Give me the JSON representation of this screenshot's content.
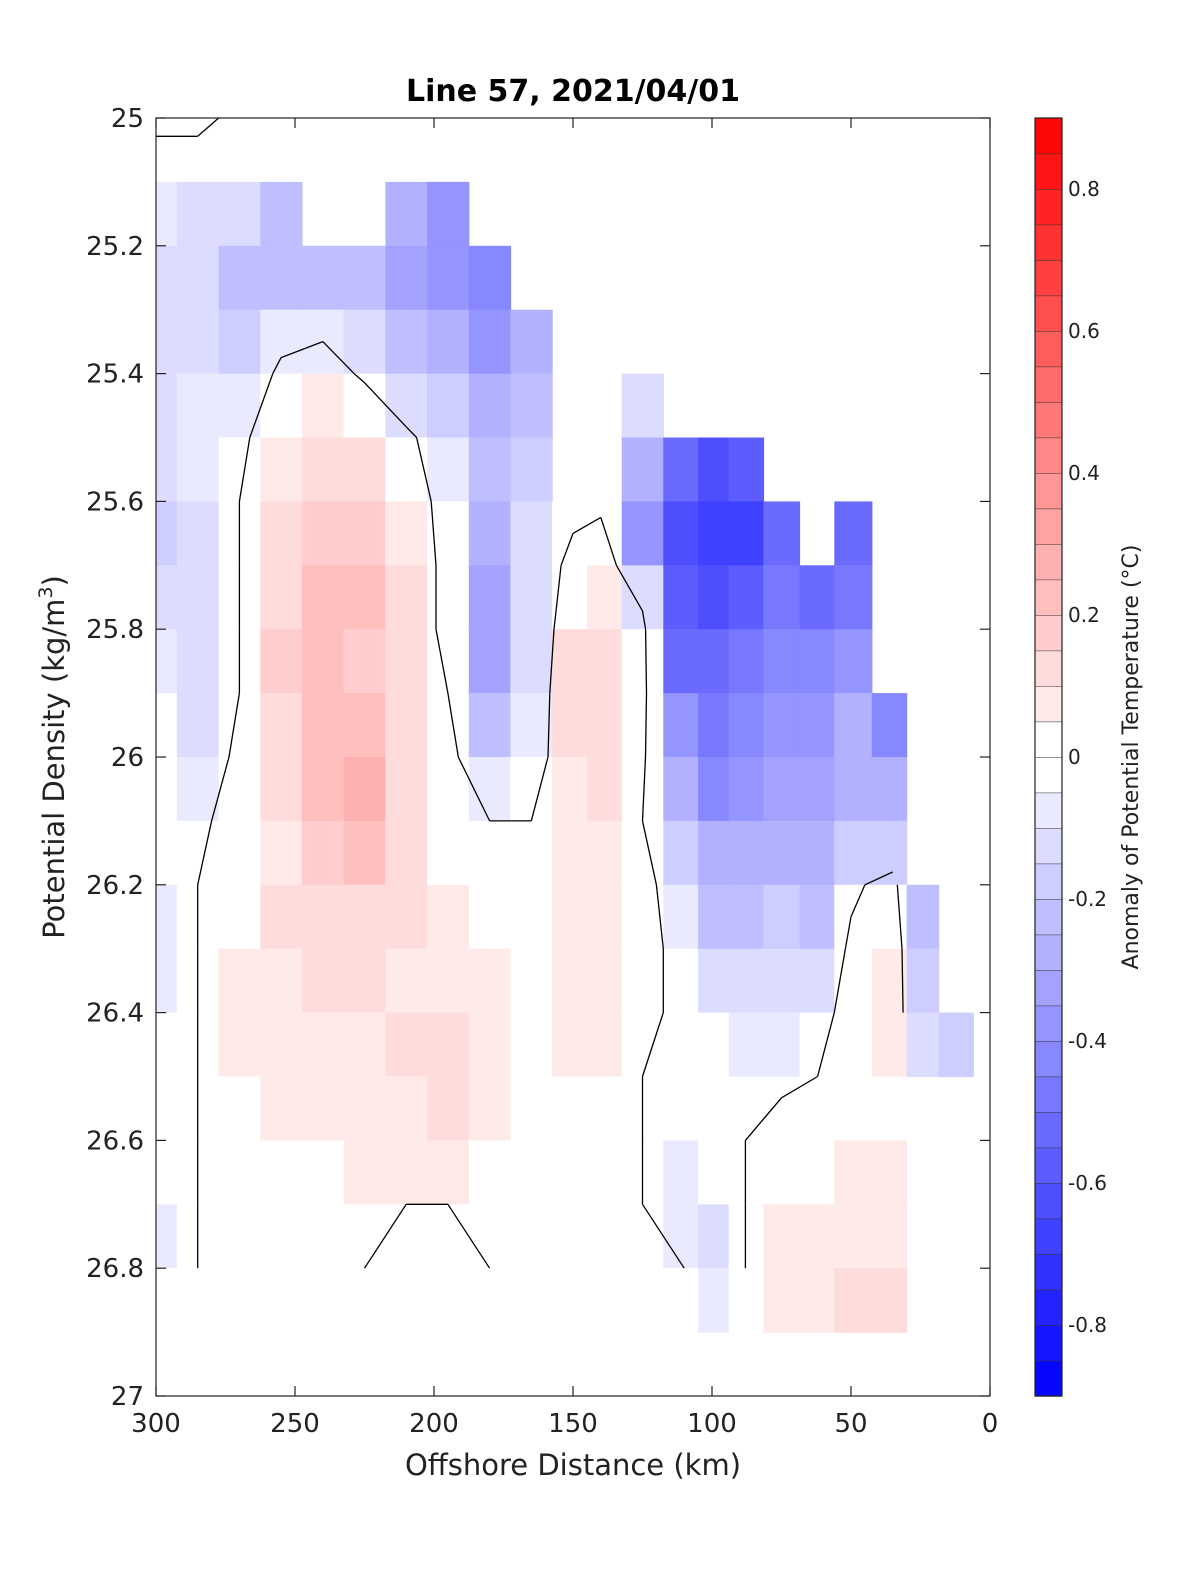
{
  "chart_data": {
    "type": "heatmap",
    "title": "Line 57, 2021/04/01",
    "xlabel": "Offshore Distance (km)",
    "ylabel_main": "Potential Density (kg/m",
    "ylabel_sup": "3",
    "ylabel_close": ")",
    "colorbar_label": "Anomaly of Potential Temperature (°C)",
    "xlim": [
      300,
      0
    ],
    "ylim": [
      25,
      27
    ],
    "y_reversed": true,
    "x_reversed": true,
    "grid": false,
    "x_ticks": [
      300,
      250,
      200,
      150,
      100,
      50,
      0
    ],
    "x_tick_labels": [
      "300",
      "250",
      "200",
      "150",
      "100",
      "50",
      "0"
    ],
    "y_ticks": [
      25,
      25.2,
      25.4,
      25.6,
      25.8,
      26,
      26.2,
      26.4,
      26.6,
      26.8,
      27
    ],
    "y_tick_labels": [
      "25",
      "25.2",
      "25.4",
      "25.6",
      "25.8",
      "26",
      "26.2",
      "26.4",
      "26.6",
      "26.8",
      "27"
    ],
    "colorbar_range": [
      -0.9,
      0.9
    ],
    "colorbar_step": 0.05,
    "colorbar_ticks": [
      -0.8,
      -0.6,
      -0.4,
      -0.2,
      0,
      0.2,
      0.4,
      0.6,
      0.8
    ],
    "colorbar_tick_labels": [
      "-0.8",
      "-0.6",
      "-0.4",
      "-0.2",
      "0",
      "0.2",
      "0.4",
      "0.6",
      "0.8"
    ],
    "colors": {
      "negative": "#0000ff",
      "positive": "#ff0000",
      "zero": "#ffffff",
      "contour": "#000000"
    },
    "data_columns": [
      {
        "x": 300,
        "top": 25.0,
        "values": [
          0.02,
          -0.05,
          -0.1,
          -0.12,
          -0.1,
          -0.14,
          -0.16,
          -0.12,
          -0.08,
          -0.02,
          0.0,
          -0.02,
          -0.06,
          -0.08,
          -0.04,
          -0.02,
          -0.02,
          -0.06,
          -0.04
        ]
      },
      {
        "x": 285,
        "top": 25.0,
        "values": [
          0.04,
          -0.1,
          -0.14,
          -0.1,
          -0.06,
          -0.06,
          -0.1,
          -0.12,
          -0.14,
          -0.1,
          -0.06,
          -0.02,
          0.0,
          0.0,
          0.0,
          0.0,
          0.0,
          0.0,
          0.0
        ]
      },
      {
        "x": 270,
        "top": 25.0,
        "values": [
          -0.04,
          -0.12,
          -0.2,
          -0.16,
          -0.08,
          -0.02,
          0.0,
          0.0,
          0.0,
          0.0,
          0.02,
          0.04,
          0.04,
          0.06,
          0.06,
          0.04,
          0.04,
          0.02,
          0.0
        ]
      },
      {
        "x": 255,
        "top": 25.1,
        "values": [
          null,
          -0.2,
          -0.24,
          -0.06,
          0.02,
          0.06,
          0.1,
          0.14,
          0.16,
          0.14,
          0.1,
          0.08,
          0.1,
          0.08,
          0.08,
          0.06,
          0.04,
          0.02,
          0.0
        ]
      },
      {
        "x": 240,
        "top": 25.2,
        "values": [
          null,
          null,
          -0.2,
          -0.06,
          0.06,
          0.14,
          0.18,
          0.2,
          0.2,
          0.22,
          0.24,
          0.18,
          0.12,
          0.1,
          0.08,
          0.06,
          0.02,
          0.0,
          0.0
        ]
      },
      {
        "x": 225,
        "top": 25.2,
        "values": [
          null,
          null,
          -0.24,
          -0.12,
          -0.02,
          0.12,
          0.18,
          0.22,
          0.16,
          0.22,
          0.28,
          0.2,
          0.12,
          0.1,
          0.08,
          0.08,
          0.06,
          0.02,
          0.0
        ]
      },
      {
        "x": 210,
        "top": 25.1,
        "values": [
          null,
          -0.28,
          -0.32,
          -0.2,
          -0.1,
          0.02,
          0.06,
          0.1,
          0.1,
          0.12,
          0.14,
          0.12,
          0.1,
          0.08,
          0.1,
          0.08,
          0.06,
          0.0,
          -0.02
        ]
      },
      {
        "x": 195,
        "top": 25.1,
        "values": [
          null,
          -0.38,
          -0.36,
          -0.28,
          -0.18,
          -0.06,
          -0.04,
          -0.04,
          -0.04,
          0.0,
          0.02,
          0.04,
          0.06,
          0.08,
          0.1,
          0.1,
          0.06,
          0.0,
          -0.02
        ]
      },
      {
        "x": 180,
        "top": 25.2,
        "values": [
          null,
          null,
          -0.44,
          -0.38,
          -0.3,
          -0.24,
          -0.28,
          -0.34,
          -0.34,
          -0.22,
          -0.06,
          0.0,
          0.04,
          0.06,
          0.08,
          0.06,
          0.04,
          0.0,
          0.0
        ]
      },
      {
        "x": 165,
        "top": 25.3,
        "values": [
          null,
          null,
          null,
          -0.3,
          -0.22,
          -0.16,
          -0.1,
          -0.1,
          -0.12,
          -0.08,
          -0.04,
          0.0,
          0.0,
          0.0,
          0.0,
          0.0,
          0.0,
          0.0,
          0.0
        ]
      },
      {
        "x": 150,
        "top": 25.6,
        "values": [
          null,
          null,
          null,
          null,
          null,
          null,
          -0.04,
          0.04,
          0.1,
          0.1,
          0.06,
          0.08,
          0.06,
          0.06,
          0.06,
          0.04,
          0.0,
          0.04,
          0.04
        ]
      },
      {
        "x": 140,
        "top": 25.6,
        "values": [
          null,
          null,
          null,
          null,
          null,
          null,
          -0.02,
          0.06,
          0.12,
          0.14,
          0.1,
          0.06,
          0.08,
          0.08,
          0.06,
          0.0,
          0.04,
          0.04,
          0.04
        ]
      },
      {
        "x": 125,
        "top": 25.4,
        "values": [
          null,
          null,
          null,
          null,
          -0.1,
          -0.28,
          -0.36,
          -0.1,
          0.04,
          0.04,
          0.02,
          0.0,
          0.04,
          0.04,
          0.02,
          0.0,
          0.0,
          0.0,
          0.0
        ]
      },
      {
        "x": 110,
        "top": 25.5,
        "values": [
          null,
          null,
          null,
          null,
          null,
          -0.54,
          -0.62,
          -0.58,
          -0.5,
          -0.38,
          -0.26,
          -0.16,
          -0.08,
          -0.04,
          -0.02,
          -0.04,
          -0.08,
          -0.06,
          0.0
        ]
      },
      {
        "x": 100,
        "top": 25.5,
        "values": [
          null,
          null,
          null,
          null,
          null,
          -0.64,
          -0.7,
          -0.62,
          -0.52,
          -0.46,
          -0.4,
          -0.3,
          -0.22,
          -0.12,
          -0.04,
          -0.02,
          -0.04,
          -0.1,
          -0.06
        ]
      },
      {
        "x": 88,
        "top": 25.5,
        "values": [
          null,
          null,
          null,
          null,
          null,
          -0.6,
          -0.66,
          -0.58,
          -0.48,
          -0.42,
          -0.38,
          -0.3,
          -0.2,
          -0.1,
          -0.06,
          -0.02,
          0.0,
          0.0,
          0.0
        ]
      },
      {
        "x": 75,
        "top": 25.6,
        "values": [
          null,
          null,
          null,
          null,
          null,
          null,
          -0.52,
          -0.48,
          -0.4,
          -0.36,
          -0.34,
          -0.26,
          -0.18,
          -0.1,
          -0.06,
          -0.02,
          0.04,
          0.06,
          0.06
        ]
      },
      {
        "x": 62,
        "top": 25.7,
        "values": [
          null,
          null,
          null,
          null,
          null,
          null,
          null,
          -0.5,
          -0.4,
          -0.36,
          -0.34,
          -0.3,
          -0.2,
          -0.1,
          -0.02,
          0.0,
          0.04,
          0.06,
          0.08
        ]
      },
      {
        "x": 50,
        "top": 25.6,
        "values": [
          null,
          null,
          null,
          null,
          null,
          null,
          -0.54,
          -0.48,
          -0.38,
          -0.3,
          -0.26,
          -0.18,
          -0.02,
          0.02,
          0.02,
          0.0,
          0.06,
          0.08,
          0.1
        ]
      },
      {
        "x": 35,
        "top": 25.9,
        "values": [
          null,
          null,
          null,
          null,
          null,
          null,
          null,
          null,
          null,
          -0.42,
          -0.3,
          -0.16,
          0.04,
          0.08,
          0.06,
          0.04,
          0.06,
          0.08,
          0.1
        ]
      },
      {
        "x": 25,
        "top": 26.2,
        "values": [
          null,
          null,
          null,
          null,
          null,
          null,
          null,
          null,
          null,
          null,
          null,
          null,
          -0.2,
          -0.16,
          -0.1,
          null,
          null,
          null,
          null
        ]
      },
      {
        "x": 12,
        "top": 26.4,
        "values": [
          null,
          null,
          null,
          null,
          null,
          null,
          null,
          null,
          null,
          null,
          null,
          null,
          null,
          null,
          -0.16,
          null,
          null,
          null,
          null
        ]
      }
    ],
    "density_levels": [
      25.0,
      25.1,
      25.2,
      25.3,
      25.4,
      25.5,
      25.6,
      25.7,
      25.8,
      25.9,
      26.0,
      26.1,
      26.2,
      26.3,
      26.4,
      26.5,
      26.6,
      26.7,
      26.8,
      26.9
    ]
  }
}
